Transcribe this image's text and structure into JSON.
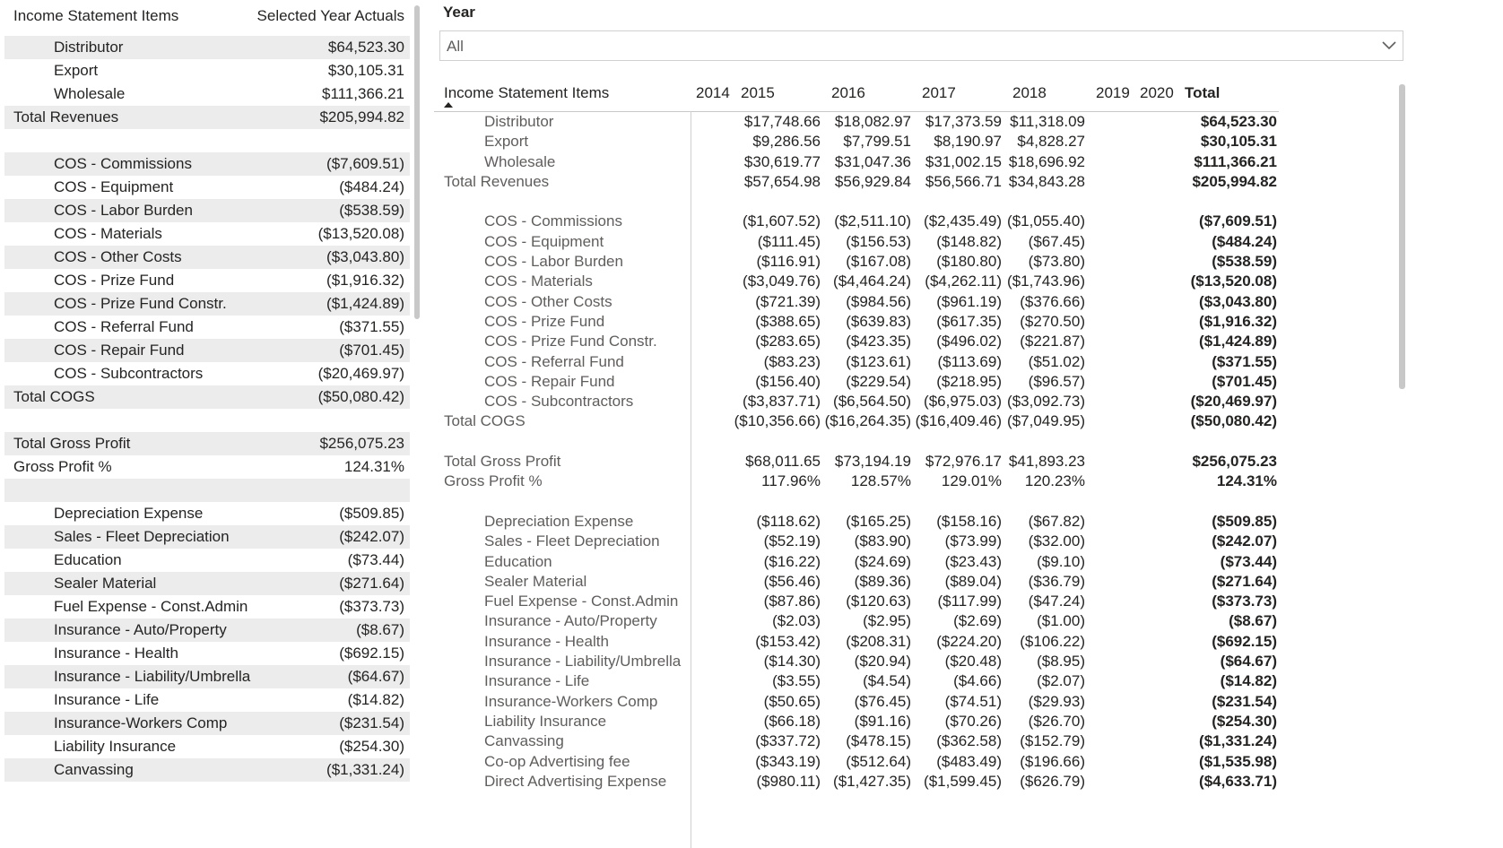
{
  "left_table": {
    "header": {
      "item": "Income Statement Items",
      "value": "Selected Year Actuals"
    },
    "rows": [
      {
        "label": "Distributor",
        "value": "$64,523.30",
        "level": 1,
        "band": true
      },
      {
        "label": "Export",
        "value": "$30,105.31",
        "level": 1,
        "band": false
      },
      {
        "label": "Wholesale",
        "value": "$111,366.21",
        "level": 1,
        "band": false
      },
      {
        "label": "Total Revenues",
        "value": "$205,994.82",
        "level": 0,
        "band": true
      },
      {
        "label": "",
        "value": "",
        "level": 0,
        "band": false
      },
      {
        "label": "COS - Commissions",
        "value": "($7,609.51)",
        "level": 1,
        "band": true
      },
      {
        "label": "COS - Equipment",
        "value": "($484.24)",
        "level": 1,
        "band": false
      },
      {
        "label": "COS - Labor Burden",
        "value": "($538.59)",
        "level": 1,
        "band": true
      },
      {
        "label": "COS - Materials",
        "value": "($13,520.08)",
        "level": 1,
        "band": false
      },
      {
        "label": "COS - Other Costs",
        "value": "($3,043.80)",
        "level": 1,
        "band": true
      },
      {
        "label": "COS - Prize Fund",
        "value": "($1,916.32)",
        "level": 1,
        "band": false
      },
      {
        "label": "COS - Prize Fund Constr.",
        "value": "($1,424.89)",
        "level": 1,
        "band": true
      },
      {
        "label": "COS - Referral Fund",
        "value": "($371.55)",
        "level": 1,
        "band": false
      },
      {
        "label": "COS - Repair Fund",
        "value": "($701.45)",
        "level": 1,
        "band": true
      },
      {
        "label": "COS - Subcontractors",
        "value": "($20,469.97)",
        "level": 1,
        "band": false
      },
      {
        "label": "Total COGS",
        "value": "($50,080.42)",
        "level": 0,
        "band": true
      },
      {
        "label": "",
        "value": "",
        "level": 0,
        "band": false
      },
      {
        "label": "Total Gross Profit",
        "value": "$256,075.23",
        "level": 0,
        "band": true
      },
      {
        "label": "Gross Profit %",
        "value": "124.31%",
        "level": 0,
        "band": false
      },
      {
        "label": "",
        "value": "",
        "level": 0,
        "band": true
      },
      {
        "label": "Depreciation Expense",
        "value": "($509.85)",
        "level": 1,
        "band": false
      },
      {
        "label": "Sales - Fleet Depreciation",
        "value": "($242.07)",
        "level": 1,
        "band": true
      },
      {
        "label": "Education",
        "value": "($73.44)",
        "level": 1,
        "band": false
      },
      {
        "label": "Sealer Material",
        "value": "($271.64)",
        "level": 1,
        "band": true
      },
      {
        "label": "Fuel Expense - Const.Admin",
        "value": "($373.73)",
        "level": 1,
        "band": false
      },
      {
        "label": "Insurance - Auto/Property",
        "value": "($8.67)",
        "level": 1,
        "band": true
      },
      {
        "label": "Insurance - Health",
        "value": "($692.15)",
        "level": 1,
        "band": false
      },
      {
        "label": "Insurance - Liability/Umbrella",
        "value": "($64.67)",
        "level": 1,
        "band": true
      },
      {
        "label": "Insurance - Life",
        "value": "($14.82)",
        "level": 1,
        "band": false
      },
      {
        "label": "Insurance-Workers Comp",
        "value": "($231.54)",
        "level": 1,
        "band": true
      },
      {
        "label": "Liability Insurance",
        "value": "($254.30)",
        "level": 1,
        "band": false
      },
      {
        "label": "Canvassing",
        "value": "($1,331.24)",
        "level": 1,
        "band": true
      }
    ]
  },
  "slicer": {
    "title": "Year",
    "value": "All",
    "icon": "chevron-down-icon"
  },
  "matrix": {
    "header": {
      "item": "Income Statement Items",
      "y2014": "2014",
      "y2015": "2015",
      "y2016": "2016",
      "y2017": "2017",
      "y2018": "2018",
      "y2019": "2019",
      "y2020": "2020",
      "total": "Total"
    },
    "rows": [
      {
        "label": "Distributor",
        "level": 1,
        "v2015": "$17,748.66",
        "v2016": "$18,082.97",
        "v2017": "$17,373.59",
        "v2018": "$11,318.09",
        "total": "$64,523.30"
      },
      {
        "label": "Export",
        "level": 1,
        "v2015": "$9,286.56",
        "v2016": "$7,799.51",
        "v2017": "$8,190.97",
        "v2018": "$4,828.27",
        "total": "$30,105.31"
      },
      {
        "label": "Wholesale",
        "level": 1,
        "v2015": "$30,619.77",
        "v2016": "$31,047.36",
        "v2017": "$31,002.15",
        "v2018": "$18,696.92",
        "total": "$111,366.21"
      },
      {
        "label": "Total Revenues",
        "level": 0,
        "v2015": "$57,654.98",
        "v2016": "$56,929.84",
        "v2017": "$56,566.71",
        "v2018": "$34,843.28",
        "total": "$205,994.82"
      },
      {
        "label": "",
        "level": 0,
        "v2015": "",
        "v2016": "",
        "v2017": "",
        "v2018": "",
        "total": ""
      },
      {
        "label": "COS - Commissions",
        "level": 1,
        "v2015": "($1,607.52)",
        "v2016": "($2,511.10)",
        "v2017": "($2,435.49)",
        "v2018": "($1,055.40)",
        "total": "($7,609.51)"
      },
      {
        "label": "COS - Equipment",
        "level": 1,
        "v2015": "($111.45)",
        "v2016": "($156.53)",
        "v2017": "($148.82)",
        "v2018": "($67.45)",
        "total": "($484.24)"
      },
      {
        "label": "COS - Labor Burden",
        "level": 1,
        "v2015": "($116.91)",
        "v2016": "($167.08)",
        "v2017": "($180.80)",
        "v2018": "($73.80)",
        "total": "($538.59)"
      },
      {
        "label": "COS - Materials",
        "level": 1,
        "v2015": "($3,049.76)",
        "v2016": "($4,464.24)",
        "v2017": "($4,262.11)",
        "v2018": "($1,743.96)",
        "total": "($13,520.08)"
      },
      {
        "label": "COS - Other Costs",
        "level": 1,
        "v2015": "($721.39)",
        "v2016": "($984.56)",
        "v2017": "($961.19)",
        "v2018": "($376.66)",
        "total": "($3,043.80)"
      },
      {
        "label": "COS - Prize Fund",
        "level": 1,
        "v2015": "($388.65)",
        "v2016": "($639.83)",
        "v2017": "($617.35)",
        "v2018": "($270.50)",
        "total": "($1,916.32)"
      },
      {
        "label": "COS - Prize Fund Constr.",
        "level": 1,
        "v2015": "($283.65)",
        "v2016": "($423.35)",
        "v2017": "($496.02)",
        "v2018": "($221.87)",
        "total": "($1,424.89)"
      },
      {
        "label": "COS - Referral Fund",
        "level": 1,
        "v2015": "($83.23)",
        "v2016": "($123.61)",
        "v2017": "($113.69)",
        "v2018": "($51.02)",
        "total": "($371.55)"
      },
      {
        "label": "COS - Repair Fund",
        "level": 1,
        "v2015": "($156.40)",
        "v2016": "($229.54)",
        "v2017": "($218.95)",
        "v2018": "($96.57)",
        "total": "($701.45)"
      },
      {
        "label": "COS - Subcontractors",
        "level": 1,
        "v2015": "($3,837.71)",
        "v2016": "($6,564.50)",
        "v2017": "($6,975.03)",
        "v2018": "($3,092.73)",
        "total": "($20,469.97)"
      },
      {
        "label": "Total COGS",
        "level": 0,
        "v2015": "($10,356.66)",
        "v2016": "($16,264.35)",
        "v2017": "($16,409.46)",
        "v2018": "($7,049.95)",
        "total": "($50,080.42)"
      },
      {
        "label": "",
        "level": 0,
        "v2015": "",
        "v2016": "",
        "v2017": "",
        "v2018": "",
        "total": ""
      },
      {
        "label": "Total Gross Profit",
        "level": 0,
        "v2015": "$68,011.65",
        "v2016": "$73,194.19",
        "v2017": "$72,976.17",
        "v2018": "$41,893.23",
        "total": "$256,075.23"
      },
      {
        "label": "Gross Profit %",
        "level": 0,
        "v2015": "117.96%",
        "v2016": "128.57%",
        "v2017": "129.01%",
        "v2018": "120.23%",
        "total": "124.31%"
      },
      {
        "label": "",
        "level": 0,
        "v2015": "",
        "v2016": "",
        "v2017": "",
        "v2018": "",
        "total": ""
      },
      {
        "label": "Depreciation Expense",
        "level": 1,
        "v2015": "($118.62)",
        "v2016": "($165.25)",
        "v2017": "($158.16)",
        "v2018": "($67.82)",
        "total": "($509.85)"
      },
      {
        "label": "Sales - Fleet Depreciation",
        "level": 1,
        "v2015": "($52.19)",
        "v2016": "($83.90)",
        "v2017": "($73.99)",
        "v2018": "($32.00)",
        "total": "($242.07)"
      },
      {
        "label": "Education",
        "level": 1,
        "v2015": "($16.22)",
        "v2016": "($24.69)",
        "v2017": "($23.43)",
        "v2018": "($9.10)",
        "total": "($73.44)"
      },
      {
        "label": "Sealer Material",
        "level": 1,
        "v2015": "($56.46)",
        "v2016": "($89.36)",
        "v2017": "($89.04)",
        "v2018": "($36.79)",
        "total": "($271.64)"
      },
      {
        "label": "Fuel Expense - Const.Admin",
        "level": 1,
        "v2015": "($87.86)",
        "v2016": "($120.63)",
        "v2017": "($117.99)",
        "v2018": "($47.24)",
        "total": "($373.73)"
      },
      {
        "label": "Insurance - Auto/Property",
        "level": 1,
        "v2015": "($2.03)",
        "v2016": "($2.95)",
        "v2017": "($2.69)",
        "v2018": "($1.00)",
        "total": "($8.67)"
      },
      {
        "label": "Insurance - Health",
        "level": 1,
        "v2015": "($153.42)",
        "v2016": "($208.31)",
        "v2017": "($224.20)",
        "v2018": "($106.22)",
        "total": "($692.15)"
      },
      {
        "label": "Insurance - Liability/Umbrella",
        "level": 1,
        "v2015": "($14.30)",
        "v2016": "($20.94)",
        "v2017": "($20.48)",
        "v2018": "($8.95)",
        "total": "($64.67)"
      },
      {
        "label": "Insurance - Life",
        "level": 1,
        "v2015": "($3.55)",
        "v2016": "($4.54)",
        "v2017": "($4.66)",
        "v2018": "($2.07)",
        "total": "($14.82)"
      },
      {
        "label": "Insurance-Workers Comp",
        "level": 1,
        "v2015": "($50.65)",
        "v2016": "($76.45)",
        "v2017": "($74.51)",
        "v2018": "($29.93)",
        "total": "($231.54)"
      },
      {
        "label": "Liability Insurance",
        "level": 1,
        "v2015": "($66.18)",
        "v2016": "($91.16)",
        "v2017": "($70.26)",
        "v2018": "($26.70)",
        "total": "($254.30)"
      },
      {
        "label": "Canvassing",
        "level": 1,
        "v2015": "($337.72)",
        "v2016": "($478.15)",
        "v2017": "($362.58)",
        "v2018": "($152.79)",
        "total": "($1,331.24)"
      },
      {
        "label": "Co-op Advertising fee",
        "level": 1,
        "v2015": "($343.19)",
        "v2016": "($512.64)",
        "v2017": "($483.49)",
        "v2018": "($196.66)",
        "total": "($1,535.98)"
      },
      {
        "label": "Direct Advertising Expense",
        "level": 1,
        "v2015": "($980.11)",
        "v2016": "($1,427.35)",
        "v2017": "($1,599.45)",
        "v2018": "($626.79)",
        "total": "($4,633.71)"
      }
    ]
  }
}
